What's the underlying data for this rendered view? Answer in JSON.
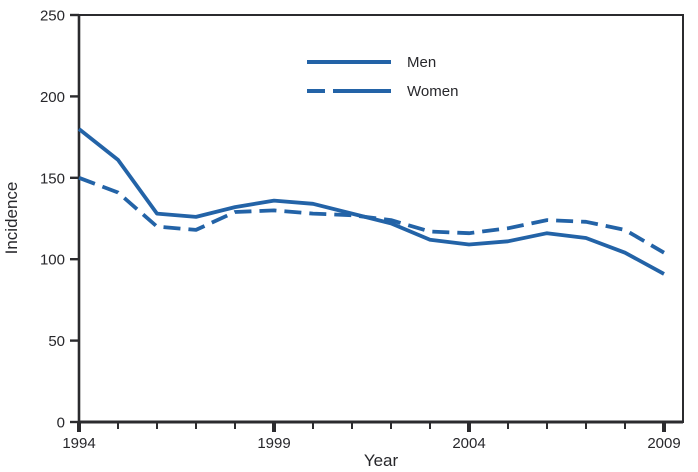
{
  "chart_data": {
    "type": "line",
    "title": "",
    "xlabel": "Year",
    "ylabel": "Incidence",
    "x": [
      1994,
      1995,
      1996,
      1997,
      1998,
      1999,
      2000,
      2001,
      2002,
      2003,
      2004,
      2005,
      2006,
      2007,
      2008,
      2009
    ],
    "series": [
      {
        "name": "Men",
        "style": "solid",
        "values": [
          180,
          161,
          128,
          126,
          132,
          136,
          134,
          128,
          122,
          112,
          109,
          111,
          116,
          113,
          104,
          91
        ]
      },
      {
        "name": "Women",
        "style": "dashed",
        "values": [
          150,
          141,
          120,
          118,
          129,
          130,
          128,
          127,
          124,
          117,
          116,
          119,
          124,
          123,
          118,
          104
        ]
      }
    ],
    "ylim": [
      0,
      250
    ],
    "y_ticks": [
      0,
      50,
      100,
      150,
      200,
      250
    ],
    "x_major_ticks": [
      1994,
      1999,
      2004,
      2009
    ],
    "x_minor_tick_interval": 1,
    "grid": false,
    "legend_position": "upper center inside plot",
    "line_color": "#2363a7",
    "axis_color": "#2b2b2e",
    "dash_pattern": "17 8"
  }
}
